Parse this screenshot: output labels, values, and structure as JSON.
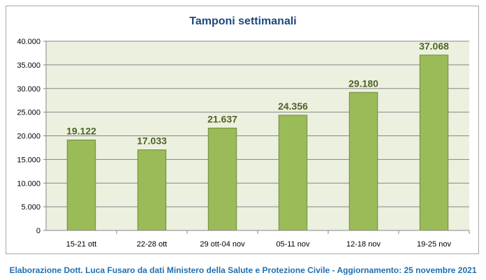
{
  "chart_data": {
    "type": "bar",
    "title": "Tamponi settimanali",
    "categories": [
      "15-21 ott",
      "22-28 ott",
      "29 ott-04 nov",
      "05-11 nov",
      "12-18 nov",
      "19-25 nov"
    ],
    "values": [
      19122,
      17033,
      21637,
      24356,
      29180,
      37068
    ],
    "data_labels": [
      "19.122",
      "17.033",
      "21.637",
      "24.356",
      "29.180",
      "37.068"
    ],
    "y_ticks": [
      0,
      5000,
      10000,
      15000,
      20000,
      25000,
      30000,
      35000,
      40000
    ],
    "y_tick_labels": [
      "0",
      "5.000",
      "10.000",
      "15.000",
      "20.000",
      "25.000",
      "30.000",
      "35.000",
      "40.000"
    ],
    "ylim": [
      0,
      40000
    ],
    "xlabel": "",
    "ylabel": "",
    "grid": true,
    "legend": "none",
    "colors": {
      "bar_fill": "#9bbb59",
      "bar_stroke": "#71893f",
      "plot_background": "#ebf1de",
      "grid": "#868686",
      "data_label": "#4f6228",
      "title": "#1f497d",
      "footer": "#1f6fb2"
    }
  },
  "footer": {
    "text": "Elaborazione Dott. Luca Fusaro da dati Ministero della Salute e Protezione Civile - Aggiornamento: 25 novembre 2021"
  }
}
